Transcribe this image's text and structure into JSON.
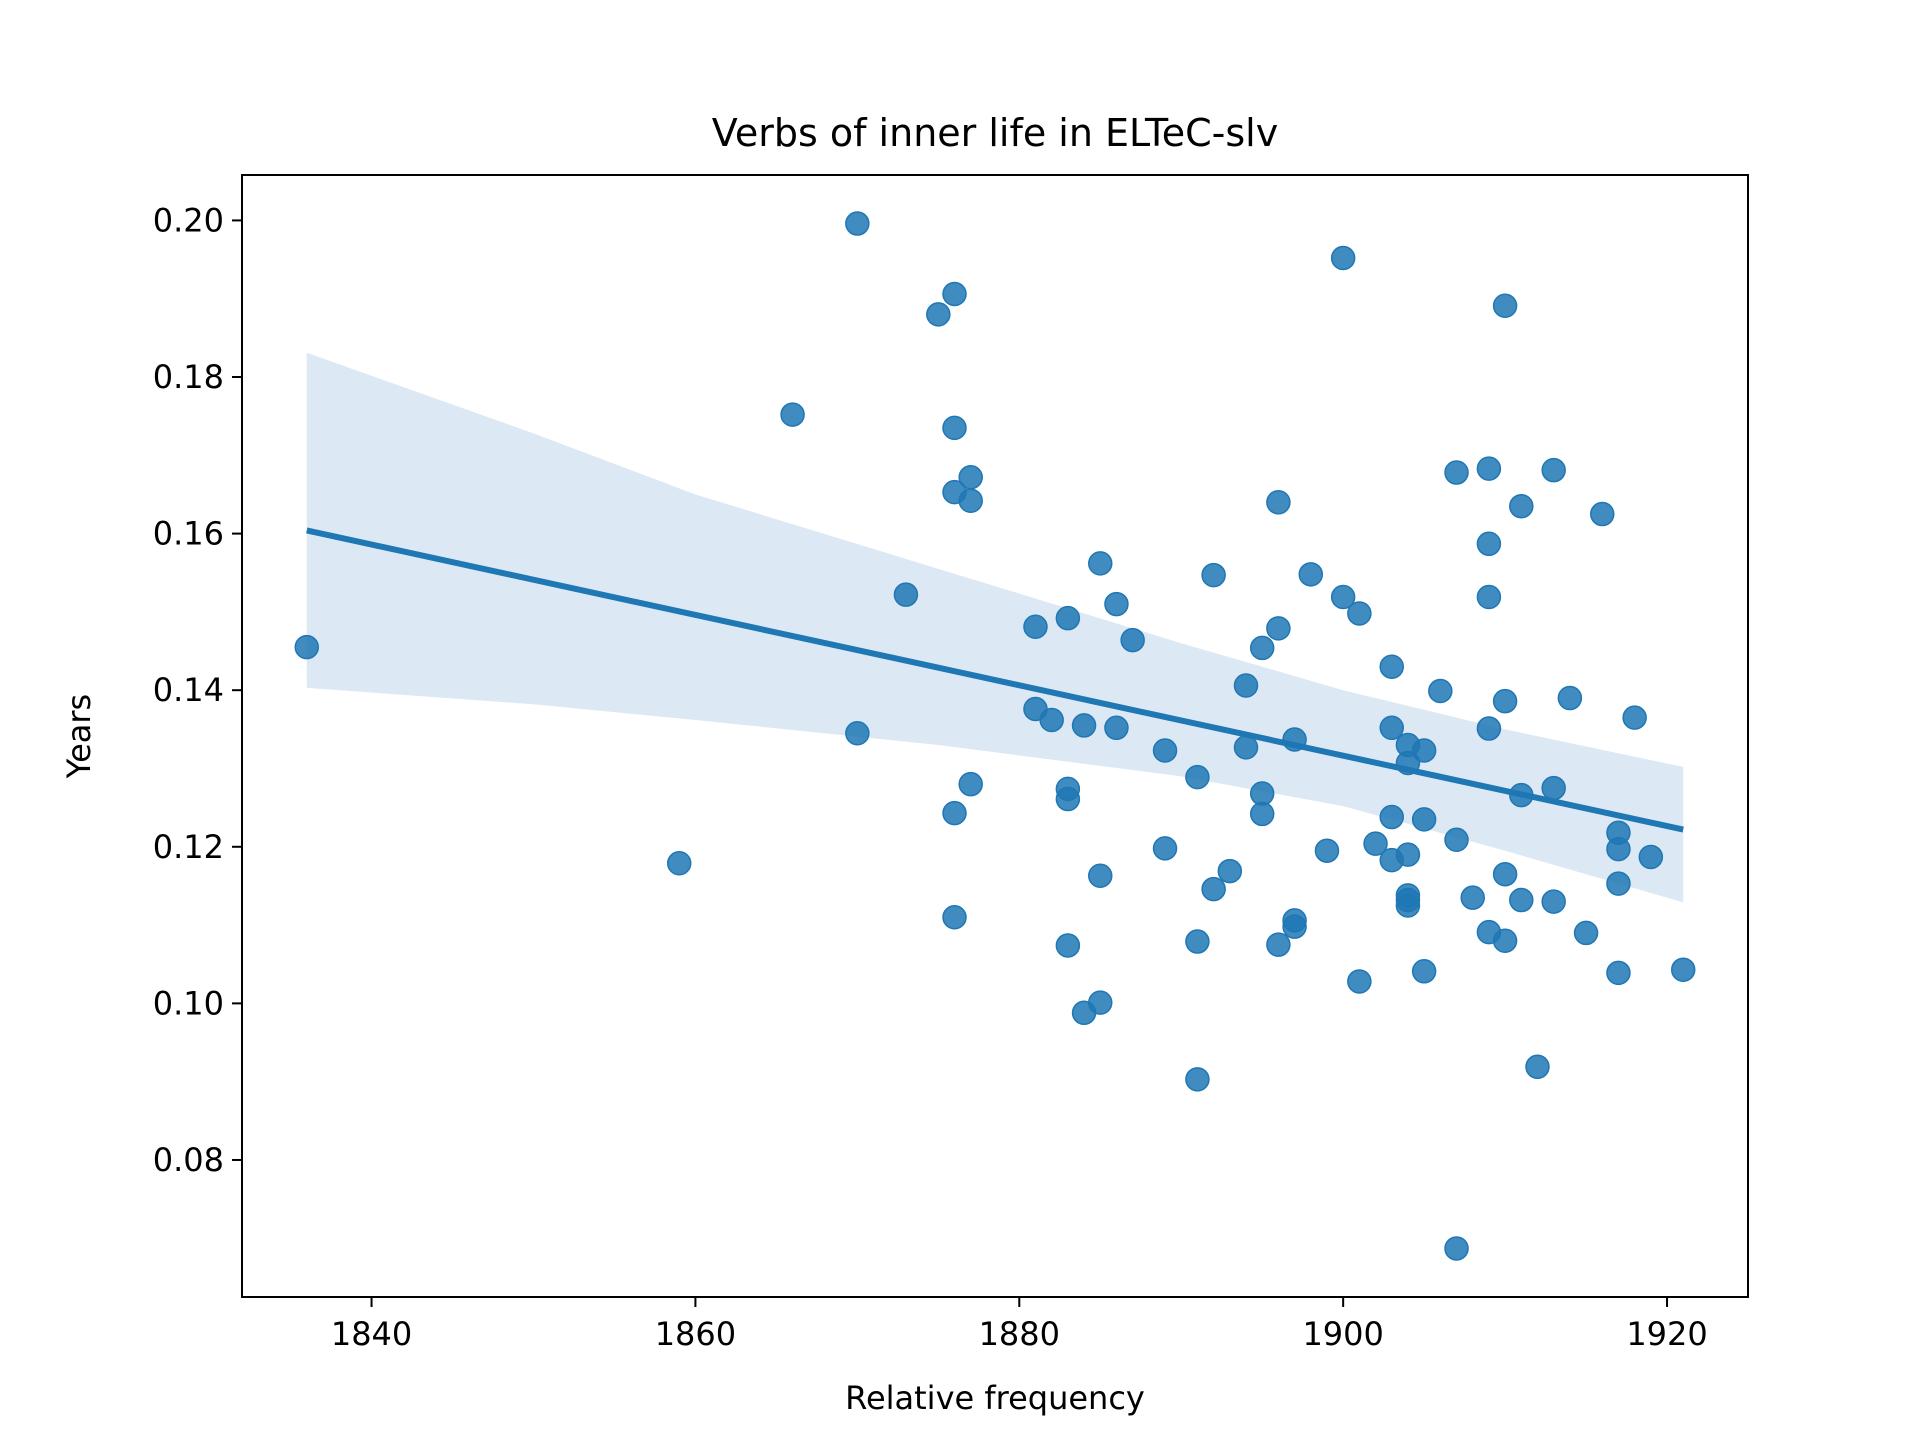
{
  "chart_data": {
    "type": "scatter",
    "title": "Verbs of inner life in ELTeC-slv",
    "xlabel": "Relative frequency",
    "ylabel": "Years",
    "xlim": [
      1832,
      1925
    ],
    "ylim": [
      0.0625,
      0.2058
    ],
    "xticks": [
      1840,
      1860,
      1880,
      1900,
      1920
    ],
    "yticks": [
      0.08,
      0.1,
      0.12,
      0.14,
      0.16,
      0.18,
      0.2
    ],
    "xtick_labels": [
      "1840",
      "1860",
      "1880",
      "1900",
      "1920"
    ],
    "ytick_labels": [
      "0.08",
      "0.10",
      "0.12",
      "0.14",
      "0.16",
      "0.18",
      "0.20"
    ],
    "grid": false,
    "colors": {
      "points": "#1f77b4",
      "regression_line": "#1f77b4",
      "confidence_band": "#dce8f4"
    },
    "series": [
      {
        "kind": "scatter",
        "points": [
          [
            1836,
            0.1455
          ],
          [
            1859,
            0.1179
          ],
          [
            1866,
            0.1752
          ],
          [
            1870,
            0.1996
          ],
          [
            1870,
            0.1345
          ],
          [
            1873,
            0.1522
          ],
          [
            1875,
            0.188
          ],
          [
            1876,
            0.1906
          ],
          [
            1876,
            0.1735
          ],
          [
            1876,
            0.1653
          ],
          [
            1876,
            0.1243
          ],
          [
            1876,
            0.111
          ],
          [
            1877,
            0.1672
          ],
          [
            1877,
            0.1642
          ],
          [
            1877,
            0.128
          ],
          [
            1881,
            0.1481
          ],
          [
            1881,
            0.1376
          ],
          [
            1882,
            0.1362
          ],
          [
            1883,
            0.1492
          ],
          [
            1883,
            0.1274
          ],
          [
            1883,
            0.1261
          ],
          [
            1883,
            0.1074
          ],
          [
            1884,
            0.1355
          ],
          [
            1884,
            0.0988
          ],
          [
            1885,
            0.1562
          ],
          [
            1885,
            0.1163
          ],
          [
            1885,
            0.1001
          ],
          [
            1886,
            0.151
          ],
          [
            1886,
            0.1352
          ],
          [
            1887,
            0.1464
          ],
          [
            1889,
            0.1323
          ],
          [
            1889,
            0.1198
          ],
          [
            1891,
            0.1289
          ],
          [
            1891,
            0.1079
          ],
          [
            1891,
            0.0903
          ],
          [
            1892,
            0.1547
          ],
          [
            1892,
            0.1146
          ],
          [
            1893,
            0.1169
          ],
          [
            1894,
            0.1406
          ],
          [
            1894,
            0.1327
          ],
          [
            1895,
            0.1454
          ],
          [
            1895,
            0.1268
          ],
          [
            1895,
            0.1242
          ],
          [
            1896,
            0.164
          ],
          [
            1896,
            0.1479
          ],
          [
            1896,
            0.1075
          ],
          [
            1897,
            0.1337
          ],
          [
            1897,
            0.1106
          ],
          [
            1897,
            0.1098
          ],
          [
            1898,
            0.1548
          ],
          [
            1899,
            0.1195
          ],
          [
            1900,
            0.1952
          ],
          [
            1900,
            0.1519
          ],
          [
            1901,
            0.1498
          ],
          [
            1901,
            0.1028
          ],
          [
            1902,
            0.1204
          ],
          [
            1903,
            0.143
          ],
          [
            1903,
            0.1352
          ],
          [
            1903,
            0.1238
          ],
          [
            1903,
            0.1183
          ],
          [
            1904,
            0.133
          ],
          [
            1904,
            0.1307
          ],
          [
            1904,
            0.119
          ],
          [
            1904,
            0.1138
          ],
          [
            1904,
            0.1132
          ],
          [
            1904,
            0.1125
          ],
          [
            1905,
            0.1323
          ],
          [
            1905,
            0.1235
          ],
          [
            1905,
            0.1041
          ],
          [
            1906,
            0.1399
          ],
          [
            1907,
            0.1678
          ],
          [
            1907,
            0.1209
          ],
          [
            1907,
            0.0687
          ],
          [
            1908,
            0.1135
          ],
          [
            1909,
            0.1683
          ],
          [
            1909,
            0.1587
          ],
          [
            1909,
            0.1519
          ],
          [
            1909,
            0.1351
          ],
          [
            1909,
            0.1091
          ],
          [
            1910,
            0.1891
          ],
          [
            1910,
            0.1386
          ],
          [
            1910,
            0.1165
          ],
          [
            1910,
            0.108
          ],
          [
            1911,
            0.1635
          ],
          [
            1911,
            0.1266
          ],
          [
            1911,
            0.1132
          ],
          [
            1912,
            0.0919
          ],
          [
            1913,
            0.1681
          ],
          [
            1913,
            0.1275
          ],
          [
            1913,
            0.113
          ],
          [
            1914,
            0.139
          ],
          [
            1915,
            0.109
          ],
          [
            1916,
            0.1625
          ],
          [
            1917,
            0.1218
          ],
          [
            1917,
            0.1197
          ],
          [
            1917,
            0.1153
          ],
          [
            1917,
            0.1039
          ],
          [
            1918,
            0.1365
          ],
          [
            1919,
            0.1187
          ],
          [
            1921,
            0.1043
          ]
        ]
      },
      {
        "kind": "regression",
        "line": [
          [
            1836,
            0.1604
          ],
          [
            1921,
            0.1222
          ]
        ],
        "ci_upper": [
          [
            1836,
            0.1831
          ],
          [
            1850,
            0.1728
          ],
          [
            1860,
            0.165
          ],
          [
            1875,
            0.1555
          ],
          [
            1890,
            0.146
          ],
          [
            1900,
            0.14
          ],
          [
            1910,
            0.135
          ],
          [
            1921,
            0.1302
          ]
        ],
        "ci_lower": [
          [
            1836,
            0.1403
          ],
          [
            1850,
            0.1382
          ],
          [
            1860,
            0.1362
          ],
          [
            1875,
            0.133
          ],
          [
            1890,
            0.129
          ],
          [
            1900,
            0.1252
          ],
          [
            1910,
            0.1195
          ],
          [
            1921,
            0.1129
          ]
        ]
      }
    ]
  }
}
